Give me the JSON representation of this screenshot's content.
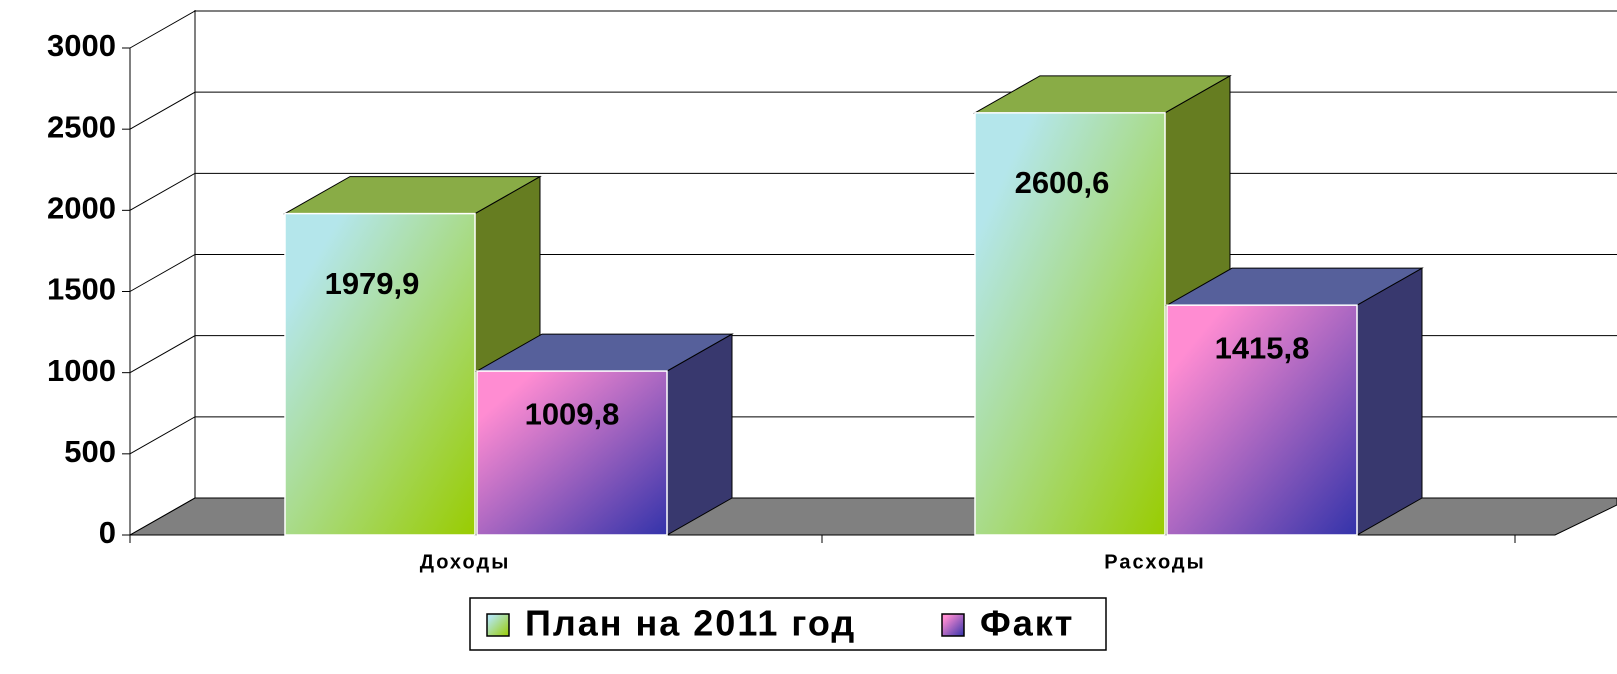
{
  "chart_data": {
    "type": "bar3d",
    "categories": [
      "Доходы",
      "Расходы"
    ],
    "series": [
      {
        "name": "План на 2011 год",
        "color": "#99cc00",
        "values": [
          1979.9,
          2600.6
        ],
        "value_labels": [
          "1979,9",
          "2600,6"
        ]
      },
      {
        "name": "Факт",
        "color": "#3333aa",
        "values": [
          1009.8,
          1415.8
        ],
        "value_labels": [
          "1009,8",
          "1415,8"
        ]
      }
    ],
    "ylim": [
      0,
      3000
    ],
    "yticks": [
      0,
      500,
      1000,
      1500,
      2000,
      2500,
      3000
    ],
    "grid": true,
    "legend": "bottom"
  }
}
